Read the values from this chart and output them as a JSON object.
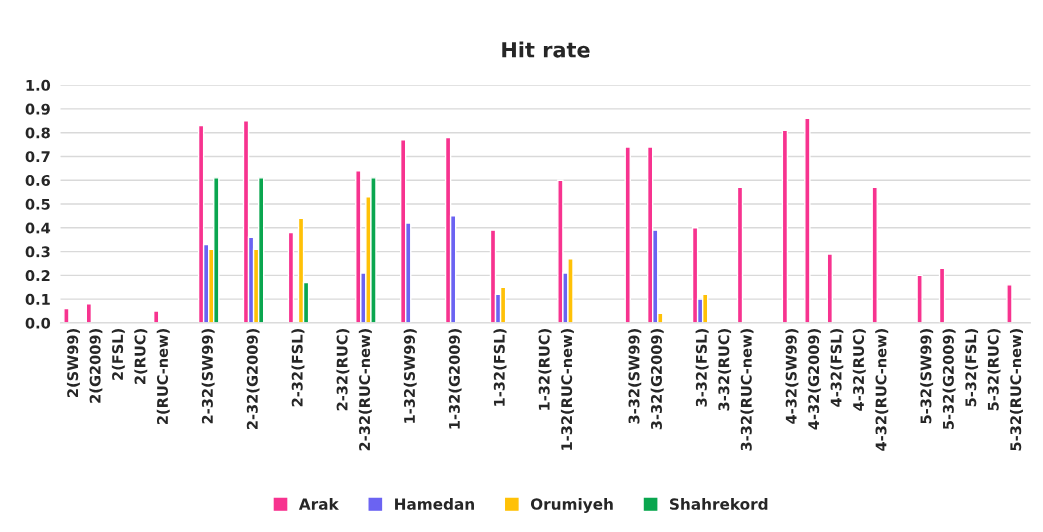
{
  "chart_data": {
    "type": "bar",
    "title": "Hit rate",
    "categories": [
      "2(SW99)",
      "2(G2009)",
      "2(FSL)",
      "2(RUC)",
      "2(RUC-new)",
      null,
      "2-32(SW99)",
      null,
      "2-32(G2009)",
      null,
      "2-32(FSL)",
      null,
      "2-32(RUC)",
      "2-32(RUC-new)",
      null,
      "1-32(SW99)",
      null,
      "1-32(G2009)",
      null,
      "1-32(FSL)",
      null,
      "1-32(RUC)",
      "1-32(RUC-new)",
      null,
      null,
      "3-32(SW99)",
      "3-32(G2009)",
      null,
      "3-32(FSL)",
      "3-32(RUC)",
      "3-32(RUC-new)",
      null,
      "4-32(SW99)",
      "4-32(G2009)",
      "4-32(FSL)",
      "4-32(RUC)",
      "4-32(RUC-new)",
      null,
      "5-32(SW99)",
      "5-32(G2009)",
      "5-32(FSL)",
      "5-32(RUC)",
      "5-32(RUC-new)"
    ],
    "series": [
      {
        "name": "Arak",
        "color": "#f7338f",
        "values": [
          0.06,
          0.08,
          null,
          null,
          0.05,
          null,
          0.83,
          null,
          0.85,
          null,
          0.38,
          null,
          null,
          0.64,
          null,
          0.77,
          null,
          0.78,
          null,
          0.39,
          null,
          null,
          0.6,
          null,
          null,
          0.74,
          0.74,
          null,
          0.4,
          null,
          0.57,
          null,
          0.81,
          0.86,
          0.29,
          null,
          0.57,
          null,
          0.2,
          0.23,
          null,
          null,
          0.16
        ]
      },
      {
        "name": "Hamedan",
        "color": "#6b63f2",
        "values": [
          null,
          null,
          null,
          null,
          null,
          null,
          0.33,
          null,
          0.36,
          null,
          null,
          null,
          null,
          0.21,
          null,
          0.42,
          null,
          0.45,
          null,
          0.12,
          null,
          null,
          0.21,
          null,
          null,
          null,
          0.39,
          null,
          0.1,
          null,
          null,
          null,
          null,
          null,
          null,
          null,
          null,
          null,
          null,
          null,
          null,
          null,
          null
        ]
      },
      {
        "name": "Orumiyeh",
        "color": "#ffc107",
        "values": [
          null,
          null,
          null,
          null,
          null,
          null,
          0.31,
          null,
          0.31,
          null,
          0.44,
          null,
          null,
          0.53,
          null,
          null,
          null,
          null,
          null,
          0.15,
          null,
          null,
          0.27,
          null,
          null,
          null,
          0.04,
          null,
          0.12,
          null,
          null,
          null,
          null,
          null,
          null,
          null,
          null,
          null,
          null,
          null,
          null,
          null,
          null
        ]
      },
      {
        "name": "Shahrekord",
        "color": "#0aa64f",
        "values": [
          null,
          null,
          null,
          null,
          null,
          null,
          0.61,
          null,
          0.61,
          null,
          0.17,
          null,
          null,
          0.61,
          null,
          null,
          null,
          null,
          null,
          null,
          null,
          null,
          null,
          null,
          null,
          null,
          null,
          null,
          null,
          null,
          null,
          null,
          null,
          null,
          null,
          null,
          null,
          null,
          null,
          null,
          null,
          null,
          null
        ]
      }
    ],
    "ylim": [
      0,
      1.0
    ],
    "yticks": [
      {
        "value": 0,
        "label": "0.0"
      },
      {
        "value": 0.1,
        "label": "0.1"
      },
      {
        "value": 0.2,
        "label": "0.2"
      },
      {
        "value": 0.3,
        "label": "0.3"
      },
      {
        "value": 0.4,
        "label": "0.4"
      },
      {
        "value": 0.5,
        "label": "0.5"
      },
      {
        "value": 0.6,
        "label": "0.6"
      },
      {
        "value": 0.7,
        "label": "0.7"
      },
      {
        "value": 0.8,
        "label": "0.8"
      },
      {
        "value": 0.9,
        "label": "0.9"
      },
      {
        "value": 1.0,
        "label": "1.0"
      }
    ],
    "grid": "y",
    "legend": "bottom"
  }
}
